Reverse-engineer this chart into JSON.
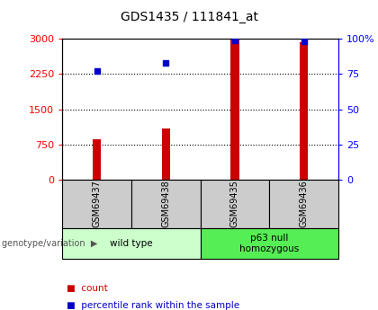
{
  "title": "GDS1435 / 111841_at",
  "samples": [
    "GSM69437",
    "GSM69438",
    "GSM69435",
    "GSM69436"
  ],
  "counts": [
    870,
    1100,
    3000,
    2920
  ],
  "percentiles": [
    77,
    83,
    99,
    98
  ],
  "ylim_left": [
    0,
    3000
  ],
  "ylim_right": [
    0,
    100
  ],
  "left_ticks": [
    0,
    750,
    1500,
    2250,
    3000
  ],
  "right_ticks": [
    0,
    25,
    50,
    75,
    100
  ],
  "right_tick_labels": [
    "0",
    "25",
    "50",
    "75",
    "100%"
  ],
  "grid_values": [
    750,
    1500,
    2250
  ],
  "bar_color": "#cc0000",
  "dot_color": "#0000cc",
  "group1_label": "wild type",
  "group2_label": "p63 null\nhomozygous",
  "group1_bg": "#ccffcc",
  "group2_bg": "#55ee55",
  "sample_bg": "#cccccc",
  "bar_width": 0.12,
  "dot_size": 5,
  "legend_count_label": "count",
  "legend_pct_label": "percentile rank within the sample",
  "genotype_label": "genotype/variation"
}
